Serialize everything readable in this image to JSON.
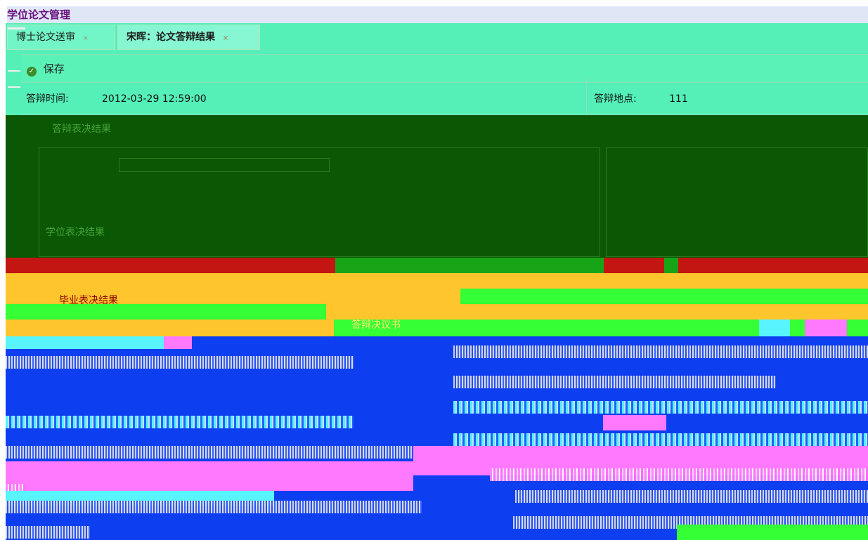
{
  "app": {
    "title": "学位论文管理"
  },
  "tabs": [
    {
      "label": "博士论文送审",
      "close": "×"
    },
    {
      "label": "宋晖：论文答辩结果",
      "close": "×"
    }
  ],
  "toolbar": {
    "save_label": "保存"
  },
  "defense": {
    "time_label": "答辩时间:",
    "time_value": "2012-03-29 12:59:00",
    "place_label": "答辩地点:",
    "place_value": "111"
  },
  "sections": {
    "section_a": "答辩表决结果",
    "section_b": "学位表决结果",
    "section_c": "毕业表决结果",
    "section_d": "答辩决议书"
  },
  "colors": {
    "title_text": "#6a0f7d",
    "title_bg": "#dfe7f7",
    "panel_cyan": "#54f0b8",
    "dark_green": "#0a5804",
    "red": "#c31612",
    "yellow": "#ffc52d",
    "green": "#35ff35",
    "blue": "#0d3ef0",
    "magenta": "#ff79ff"
  },
  "icons": {
    "save": "check-circle-icon",
    "tab_close": "close-icon"
  }
}
